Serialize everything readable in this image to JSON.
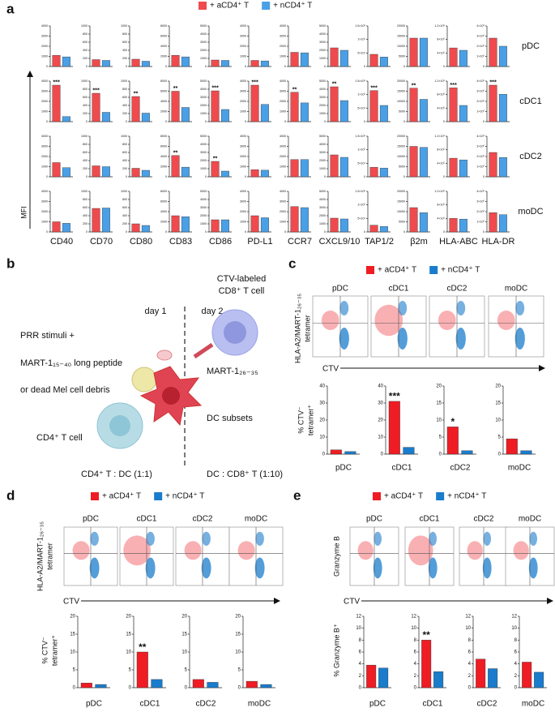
{
  "chart_data": [
    {
      "panel": "a",
      "type": "bar_grid",
      "series": [
        {
          "name": "+ aCD4⁺ T",
          "color": "#ef4a4d"
        },
        {
          "name": "+ nCD4⁺ T",
          "color": "#4aa0e6"
        }
      ],
      "y_label": "MFI",
      "rows": [
        "pDC",
        "cDC1",
        "cDC2",
        "moDC"
      ],
      "columns": [
        {
          "label": "CD40",
          "ylim": [
            0,
            4000
          ],
          "yticks": [
            0,
            1000,
            2000,
            3000,
            4000
          ],
          "values": [
            [
              1100,
              950
            ],
            [
              3600,
              500
            ],
            [
              1400,
              900
            ],
            [
              1000,
              850
            ]
          ],
          "significance": [
            null,
            "***",
            null,
            null
          ]
        },
        {
          "label": "CD70",
          "ylim": [
            0,
            1000
          ],
          "yticks": [
            0,
            200,
            400,
            600,
            800,
            1000
          ],
          "values": [
            [
              170,
              150
            ],
            [
              700,
              230
            ],
            [
              270,
              250
            ],
            [
              580,
              590
            ]
          ],
          "significance": [
            null,
            "***",
            null,
            null
          ]
        },
        {
          "label": "CD80",
          "ylim": [
            0,
            1000
          ],
          "yticks": [
            0,
            200,
            400,
            600,
            800,
            1000
          ],
          "values": [
            [
              180,
              130
            ],
            [
              620,
              210
            ],
            [
              210,
              160
            ],
            [
              200,
              160
            ]
          ],
          "significance": [
            null,
            "**",
            null,
            null
          ]
        },
        {
          "label": "CD83",
          "ylim": [
            0,
            8000
          ],
          "yticks": [
            0,
            2000,
            4000,
            6000,
            8000
          ],
          "values": [
            [
              2200,
              1900
            ],
            [
              6000,
              2800
            ],
            [
              4200,
              1900
            ],
            [
              3200,
              3000
            ]
          ],
          "significance": [
            null,
            "**",
            "**",
            null
          ]
        },
        {
          "label": "CD86",
          "ylim": [
            0,
            5000
          ],
          "yticks": [
            0,
            1000,
            2000,
            3000,
            4000,
            5000
          ],
          "values": [
            [
              800,
              750
            ],
            [
              3800,
              1500
            ],
            [
              1900,
              700
            ],
            [
              1500,
              1500
            ]
          ],
          "significance": [
            null,
            "***",
            "**",
            null
          ]
        },
        {
          "label": "PD-L1",
          "ylim": [
            0,
            4000
          ],
          "yticks": [
            0,
            1000,
            2000,
            3000,
            4000
          ],
          "values": [
            [
              600,
              550
            ],
            [
              3600,
              1700
            ],
            [
              700,
              650
            ],
            [
              1600,
              1400
            ]
          ],
          "significance": [
            null,
            "***",
            null,
            null
          ]
        },
        {
          "label": "CCR7",
          "ylim": [
            0,
            4000
          ],
          "yticks": [
            0,
            1000,
            2000,
            3000,
            4000
          ],
          "values": [
            [
              1400,
              1350
            ],
            [
              2900,
              1850
            ],
            [
              1700,
              1700
            ],
            [
              2500,
              2400
            ]
          ],
          "significance": [
            null,
            "**",
            null,
            null
          ]
        },
        {
          "label": "CXCL9/10",
          "ylim": [
            0,
            5000
          ],
          "yticks": [
            0,
            1000,
            2000,
            3000,
            4000,
            5000
          ],
          "values": [
            [
              2300,
              2000
            ],
            [
              4300,
              2600
            ],
            [
              2700,
              2400
            ],
            [
              1700,
              1600
            ]
          ],
          "significance": [
            null,
            "**",
            null,
            null
          ]
        },
        {
          "label": "TAP1/2",
          "ylim": [
            0,
            150000
          ],
          "yticks": [
            0,
            {
              "value": 50000,
              "label": "5×10⁴"
            },
            {
              "value": 100000,
              "label": "1×10⁵"
            },
            {
              "value": 150000,
              "label": "1.5×10⁵"
            }
          ],
          "values": [
            [
              45000,
              35000
            ],
            [
              115000,
              60000
            ],
            [
              35000,
              32000
            ],
            [
              25000,
              20000
            ]
          ],
          "significance": [
            null,
            "***",
            null,
            null
          ]
        },
        {
          "label": "β2m",
          "ylim": [
            0,
            20000
          ],
          "yticks": [
            0,
            5000,
            10000,
            15000,
            20000
          ],
          "values": [
            [
              14000,
              14000
            ],
            [
              16500,
              11000
            ],
            [
              15000,
              14500
            ],
            [
              12000,
              9500
            ]
          ],
          "significance": [
            null,
            "**",
            null,
            null
          ]
        },
        {
          "label": "HLA-ABC",
          "ylim": [
            0,
            1200000
          ],
          "yticks": [
            0,
            {
              "value": 400000,
              "label": "4×10⁵"
            },
            {
              "value": 800000,
              "label": "8×10⁵"
            },
            {
              "value": 1200000,
              "label": "1.2×10⁶"
            }
          ],
          "values": [
            [
              550000,
              480000
            ],
            [
              1000000,
              480000
            ],
            [
              550000,
              500000
            ],
            [
              400000,
              380000
            ]
          ],
          "significance": [
            null,
            "***",
            null,
            null
          ]
        },
        {
          "label": "HLA-DR",
          "ylim": [
            0,
            4000000
          ],
          "yticks": [
            0,
            {
              "value": 1000000,
              "label": "1×10⁶"
            },
            {
              "value": 2000000,
              "label": "2×10⁶"
            },
            {
              "value": 3000000,
              "label": "3×10⁶"
            },
            {
              "value": 4000000,
              "label": "4×10⁶"
            }
          ],
          "values": [
            [
              2800000,
              2000000
            ],
            [
              3600000,
              2700000
            ],
            [
              2400000,
              1900000
            ],
            [
              1900000,
              1700000
            ]
          ],
          "significance": [
            null,
            "***",
            null,
            null
          ]
        }
      ]
    },
    {
      "panel": "c",
      "type": "bar_panels",
      "series": [
        {
          "name": "+ aCD4⁺ T",
          "color": "#ef1c24"
        },
        {
          "name": "+ nCD4⁺ T",
          "color": "#1a7ccc"
        }
      ],
      "flow_y_label": [
        "HLA-A2/MART-1₂₆₋₃₅",
        "tetramer"
      ],
      "flow_x_label": "CTV",
      "y_label": [
        "% CTV⁻",
        "tetramer⁺"
      ],
      "subsets": [
        {
          "label": "pDC",
          "ylim": [
            0,
            40
          ],
          "yticks": [
            0,
            10,
            20,
            30,
            40
          ],
          "values": [
            2.5,
            1.5
          ],
          "significance": null
        },
        {
          "label": "cDC1",
          "ylim": [
            0,
            40
          ],
          "yticks": [
            0,
            10,
            20,
            30,
            40
          ],
          "values": [
            31,
            4
          ],
          "significance": "***"
        },
        {
          "label": "cDC2",
          "ylim": [
            0,
            20
          ],
          "yticks": [
            0,
            5,
            10,
            15,
            20
          ],
          "values": [
            8,
            1
          ],
          "significance": "*"
        },
        {
          "label": "moDC",
          "ylim": [
            0,
            20
          ],
          "yticks": [
            0,
            5,
            10,
            15,
            20
          ],
          "values": [
            4.5,
            1
          ],
          "significance": null
        }
      ]
    },
    {
      "panel": "d",
      "type": "bar_panels",
      "series": [
        {
          "name": "+ aCD4⁺ T",
          "color": "#ef1c24"
        },
        {
          "name": "+ nCD4⁺ T",
          "color": "#1a7ccc"
        }
      ],
      "flow_y_label": [
        "HLA-A2/MART-1₂₆₋₃₅",
        "tetramer"
      ],
      "flow_x_label": "CTV",
      "y_label": [
        "% CTV⁻",
        "tetramer⁺"
      ],
      "subsets": [
        {
          "label": "pDC",
          "ylim": [
            0,
            20
          ],
          "yticks": [
            0,
            5,
            10,
            15,
            20
          ],
          "values": [
            1.3,
            0.9
          ],
          "significance": null
        },
        {
          "label": "cDC1",
          "ylim": [
            0,
            20
          ],
          "yticks": [
            0,
            5,
            10,
            15,
            20
          ],
          "values": [
            10,
            2.3
          ],
          "significance": "**"
        },
        {
          "label": "cDC2",
          "ylim": [
            0,
            20
          ],
          "yticks": [
            0,
            5,
            10,
            15,
            20
          ],
          "values": [
            2.3,
            1.5
          ],
          "significance": null
        },
        {
          "label": "moDC",
          "ylim": [
            0,
            20
          ],
          "yticks": [
            0,
            5,
            10,
            15,
            20
          ],
          "values": [
            1.8,
            0.9
          ],
          "significance": null
        }
      ]
    },
    {
      "panel": "e",
      "type": "bar_panels",
      "series": [
        {
          "name": "+ aCD4⁺ T",
          "color": "#ef1c24"
        },
        {
          "name": "+ nCD4⁺ T",
          "color": "#1a7ccc"
        }
      ],
      "flow_y_label": [
        "Granzyme B"
      ],
      "flow_x_label": "CTV",
      "y_label": [
        "% Granzyme B⁺"
      ],
      "subsets": [
        {
          "label": "pDC",
          "ylim": [
            0,
            12
          ],
          "yticks": [
            0,
            2,
            4,
            6,
            8,
            10,
            12
          ],
          "values": [
            3.8,
            3.3
          ],
          "significance": null
        },
        {
          "label": "cDC1",
          "ylim": [
            0,
            12
          ],
          "yticks": [
            0,
            2,
            4,
            6,
            8,
            10,
            12
          ],
          "values": [
            8,
            2.7
          ],
          "significance": "**"
        },
        {
          "label": "cDC2",
          "ylim": [
            0,
            12
          ],
          "yticks": [
            0,
            2,
            4,
            6,
            8,
            10,
            12
          ],
          "values": [
            4.8,
            3.2
          ],
          "significance": null
        },
        {
          "label": "moDC",
          "ylim": [
            0,
            12
          ],
          "yticks": [
            0,
            2,
            4,
            6,
            8,
            10,
            12
          ],
          "values": [
            4.3,
            2.6
          ],
          "significance": null
        }
      ]
    }
  ],
  "diagram": {
    "panel": "b",
    "day_1": "day 1",
    "day_2": "day 2",
    "cd8_cell": [
      "CTV-labeled",
      "CD8⁺ T cell"
    ],
    "stimuli": [
      "PRR stimuli +",
      "MART-1₁₅₋₄₀ long peptide",
      "or dead Mel cell debris"
    ],
    "peptide": "MART-1₂₆₋₃₅",
    "cd4_cell": "CD4⁺ T cell",
    "dc": "DC subsets",
    "ratio_1": "CD4⁺ T : DC (1:1)",
    "ratio_2": "DC : CD8⁺ T (1:10)"
  }
}
